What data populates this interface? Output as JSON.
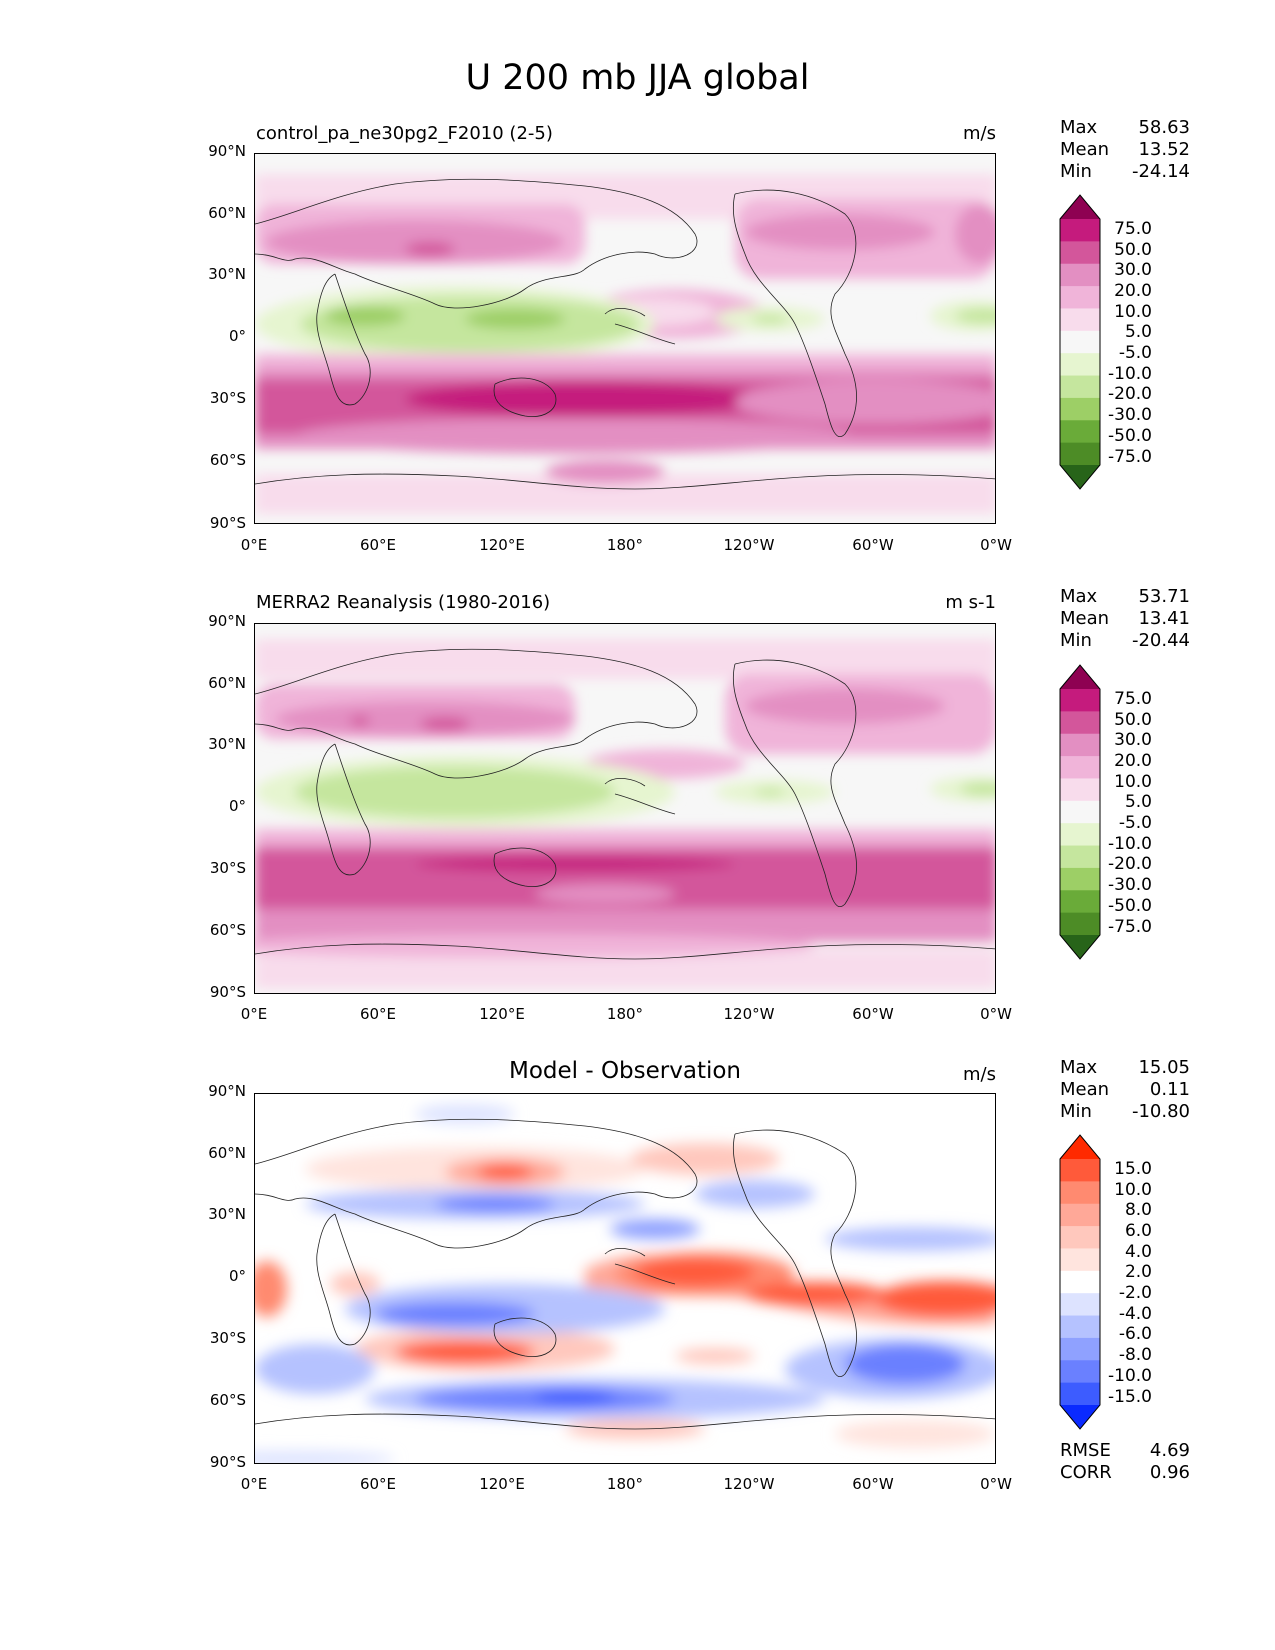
{
  "figure": {
    "title": "U 200 mb JJA global"
  },
  "panels": [
    {
      "title_left": "control_pa_ne30pg2_F2010 (2-5)",
      "units": "m/s",
      "stats": [
        {
          "label": "Max",
          "value": "58.63"
        },
        {
          "label": "Mean",
          "value": "13.52"
        },
        {
          "label": "Min",
          "value": "-24.14"
        }
      ],
      "colorbar": {
        "labels": [
          "75.0",
          "50.0",
          "30.0",
          "20.0",
          "10.0",
          "5.0",
          "-5.0",
          "-10.0",
          "-20.0",
          "-30.0",
          "-50.0",
          "-75.0"
        ],
        "colors": [
          "#8e0152",
          "#c51b7d",
          "#d3569b",
          "#e38fc2",
          "#f0b4d9",
          "#f8dcec",
          "#f7f7f7",
          "#e6f5d0",
          "#c5e69e",
          "#9dcf66",
          "#6aab39",
          "#4d8c26",
          "#276419"
        ]
      }
    },
    {
      "title_left": "MERRA2 Reanalysis (1980-2016)",
      "units": "m s-1",
      "stats": [
        {
          "label": "Max",
          "value": "53.71"
        },
        {
          "label": "Mean",
          "value": "13.41"
        },
        {
          "label": "Min",
          "value": "-20.44"
        }
      ],
      "colorbar": {
        "labels": [
          "75.0",
          "50.0",
          "30.0",
          "20.0",
          "10.0",
          "5.0",
          "-5.0",
          "-10.0",
          "-20.0",
          "-30.0",
          "-50.0",
          "-75.0"
        ],
        "colors": [
          "#8e0152",
          "#c51b7d",
          "#d3569b",
          "#e38fc2",
          "#f0b4d9",
          "#f8dcec",
          "#f7f7f7",
          "#e6f5d0",
          "#c5e69e",
          "#9dcf66",
          "#6aab39",
          "#4d8c26",
          "#276419"
        ]
      }
    },
    {
      "title_center": "Model - Observation",
      "units": "m/s",
      "stats": [
        {
          "label": "Max",
          "value": "15.05"
        },
        {
          "label": "Mean",
          "value": "0.11"
        },
        {
          "label": "Min",
          "value": "-10.80"
        }
      ],
      "metrics": [
        {
          "label": "RMSE",
          "value": "4.69"
        },
        {
          "label": "CORR",
          "value": "0.96"
        }
      ],
      "colorbar": {
        "labels": [
          "15.0",
          "10.0",
          "8.0",
          "6.0",
          "4.0",
          "2.0",
          "-2.0",
          "-4.0",
          "-6.0",
          "-8.0",
          "-10.0",
          "-15.0"
        ],
        "colors": [
          "#ff2a00",
          "#ff5a3a",
          "#ff8a70",
          "#ffa898",
          "#ffc8bd",
          "#ffe4de",
          "#ffffff",
          "#dde3ff",
          "#b5c2ff",
          "#8fa1ff",
          "#6a80ff",
          "#3d5cff",
          "#0a2aff"
        ]
      }
    }
  ],
  "axes": {
    "lat_labels": [
      "90°N",
      "60°N",
      "30°N",
      "0°",
      "30°S",
      "60°S",
      "90°S"
    ],
    "lon_labels": [
      "0°E",
      "60°E",
      "120°E",
      "180°",
      "120°W",
      "60°W",
      "0°W"
    ]
  },
  "map_data": {
    "field": "Zonal wind at 200 mb, JJA mean",
    "projection": "PlateCarree",
    "lon_range": [
      0,
      360
    ],
    "lat_range": [
      -90,
      90
    ]
  }
}
